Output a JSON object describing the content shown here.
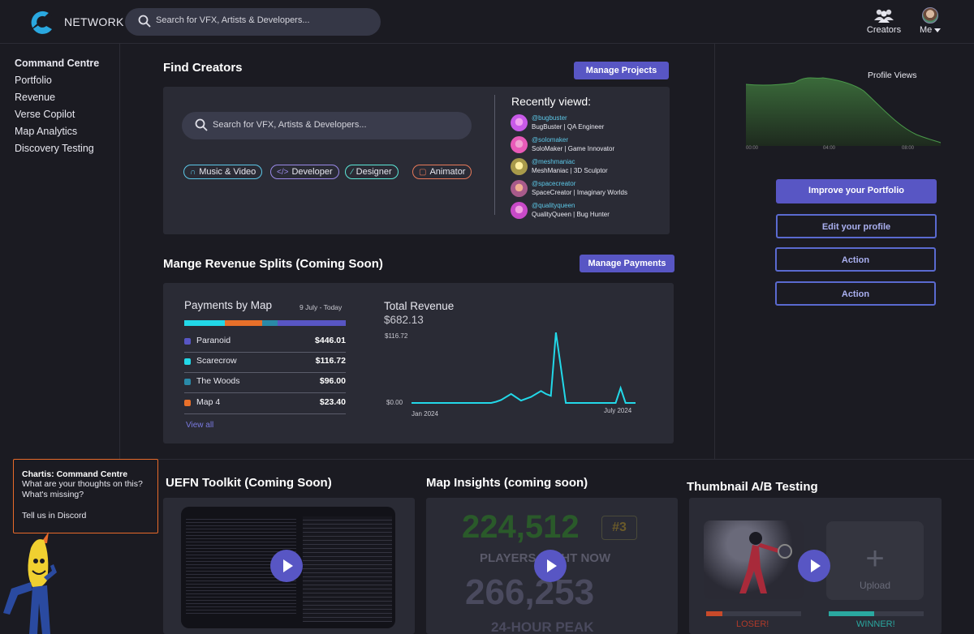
{
  "header": {
    "brand": "NETWORK",
    "search_placeholder": "Search for VFX, Artists & Developers...",
    "creators_label": "Creators",
    "me_label": "Me"
  },
  "sidebar": {
    "items": [
      {
        "label": "Command Centre"
      },
      {
        "label": "Portfolio"
      },
      {
        "label": "Revenue"
      },
      {
        "label": "Verse Copilot"
      },
      {
        "label": "Map Analytics"
      },
      {
        "label": "Discovery Testing"
      }
    ]
  },
  "find_creators": {
    "title": "Find Creators",
    "manage_button": "Manage Projects",
    "search_placeholder": "Search for VFX, Artists & Developers...",
    "chips": [
      {
        "label": "Music & Video",
        "icon": "headphones-icon",
        "color": "#5cc8e8"
      },
      {
        "label": "Developer",
        "icon": "code-icon",
        "color": "#9a8ae8"
      },
      {
        "label": "Designer",
        "icon": "pen-icon",
        "color": "#5ce8d8"
      },
      {
        "label": "Animator",
        "icon": "animation-icon",
        "color": "#e87a5a"
      }
    ],
    "recently_viewed_title": "Recently viewd:",
    "recently_viewed": [
      {
        "handle": "@bugbuster",
        "desc": "BugBuster | QA Engineer",
        "color": "#c85ae8"
      },
      {
        "handle": "@solomaker",
        "desc": "SoloMaker | Game Innovator",
        "color": "#e85ab8"
      },
      {
        "handle": "@meshmaniac",
        "desc": "MeshManiac | 3D Sculptor",
        "color": "#e8d84a"
      },
      {
        "handle": "@spacecreator",
        "desc": "SpaceCreator | Imaginary Worlds",
        "color": "#e88a5a"
      },
      {
        "handle": "@qualityqueen",
        "desc": "QualityQueen | Bug Hunter",
        "color": "#e85ad8"
      }
    ]
  },
  "revenue": {
    "title": "Mange Revenue Splits (Coming Soon)",
    "manage_button": "Manage Payments",
    "payments_title": "Payments by Map",
    "range": "9 July - Today",
    "maps": [
      {
        "name": "Paranoid",
        "value": "$446.01",
        "amount": 446.01,
        "color": "#5856c4"
      },
      {
        "name": "Scarecrow",
        "value": "$116.72",
        "amount": 116.72,
        "color": "#22d8e8"
      },
      {
        "name": "The Woods",
        "value": "$96.00",
        "amount": 96.0,
        "color": "#2a8aa8"
      },
      {
        "name": "Map 4",
        "value": "$23.40",
        "amount": 23.4,
        "color": "#e8702a"
      }
    ],
    "view_all": "View all",
    "total_title": "Total Revenue",
    "total_value": "$682.13"
  },
  "chart_data": {
    "type": "line",
    "title": "Total Revenue",
    "ylim": [
      0,
      116.72
    ],
    "y_ticks": [
      "$116.72",
      "$0.00"
    ],
    "x_ticks": [
      "Jan 2024",
      "July 2024"
    ],
    "x": [
      0,
      3,
      6,
      9,
      12,
      14,
      17,
      20,
      22,
      24,
      26,
      28,
      29,
      30,
      32,
      34,
      36,
      40,
      44,
      48,
      52,
      54,
      56,
      58,
      60,
      62,
      64,
      66,
      68,
      70,
      72,
      74,
      76,
      78,
      80,
      82,
      84,
      86,
      88,
      90
    ],
    "values": [
      0,
      0,
      0,
      0,
      0,
      0,
      0,
      0,
      0,
      0,
      0,
      0,
      0,
      0,
      0,
      2,
      5,
      15,
      4,
      10,
      20,
      15,
      12,
      118,
      60,
      0,
      0,
      0,
      0,
      0,
      0,
      0,
      0,
      0,
      0,
      0,
      25,
      0,
      0,
      0
    ]
  },
  "profile_views": {
    "title": "Profile Views",
    "ticks": [
      "00:00",
      "04:00",
      "08:00"
    ]
  },
  "actions": {
    "improve": "Improve your Portfolio",
    "edit": "Edit your profile",
    "action1": "Action",
    "action2": "Action"
  },
  "bottom": {
    "uefn_title": "UEFN Toolkit (Coming Soon)",
    "insights_title": "Map Insights (coming soon)",
    "players_now": "224,512",
    "rank": "#3",
    "players_now_label": "PLAYERS RIGHT NOW",
    "peak": "266,253",
    "peak_label": "24-HOUR PEAK",
    "ab_title": "Thumbnail A/B Testing",
    "upload_label": "Upload",
    "loser_label": "LOSER!",
    "winner_label": "WINNER!"
  },
  "chartis": {
    "title": "Chartis: Command Centre",
    "line1": "What are your thoughts on this?",
    "line2": "What's missing?",
    "line3": "Tell us in Discord"
  }
}
